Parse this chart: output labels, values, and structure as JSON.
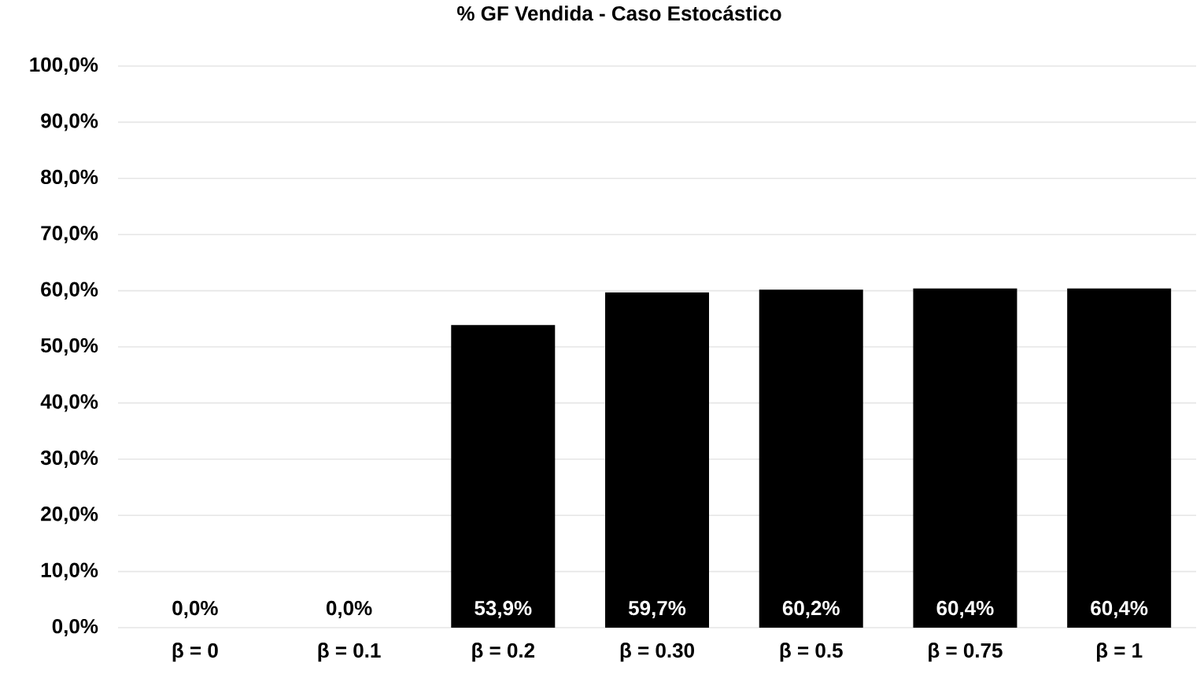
{
  "chart_data": {
    "type": "bar",
    "title": "% GF Vendida - Caso Estocástico",
    "categories": [
      "β = 0",
      "β = 0.1",
      "β = 0.2",
      "β = 0.30",
      "β = 0.5",
      "β = 0.75",
      "β = 1"
    ],
    "values": [
      0,
      0,
      53.9,
      59.7,
      60.2,
      60.4,
      60.4
    ],
    "value_labels": [
      "0,0%",
      "0,0%",
      "53,9%",
      "59,7%",
      "60,2%",
      "60,4%",
      "60,4%"
    ],
    "color": "#000000",
    "ylim": [
      0,
      100
    ],
    "yticks": [
      {
        "value": 0,
        "label": "0,0%"
      },
      {
        "value": 10,
        "label": "10,0%"
      },
      {
        "value": 20,
        "label": "20,0%"
      },
      {
        "value": 30,
        "label": "30,0%"
      },
      {
        "value": 40,
        "label": "40,0%"
      },
      {
        "value": 50,
        "label": "50,0%"
      },
      {
        "value": 60,
        "label": "60,0%"
      },
      {
        "value": 70,
        "label": "70,0%"
      },
      {
        "value": 80,
        "label": "80,0%"
      },
      {
        "value": 90,
        "label": "90,0%"
      },
      {
        "value": 100,
        "label": "100,0%"
      }
    ],
    "grid": "y"
  }
}
